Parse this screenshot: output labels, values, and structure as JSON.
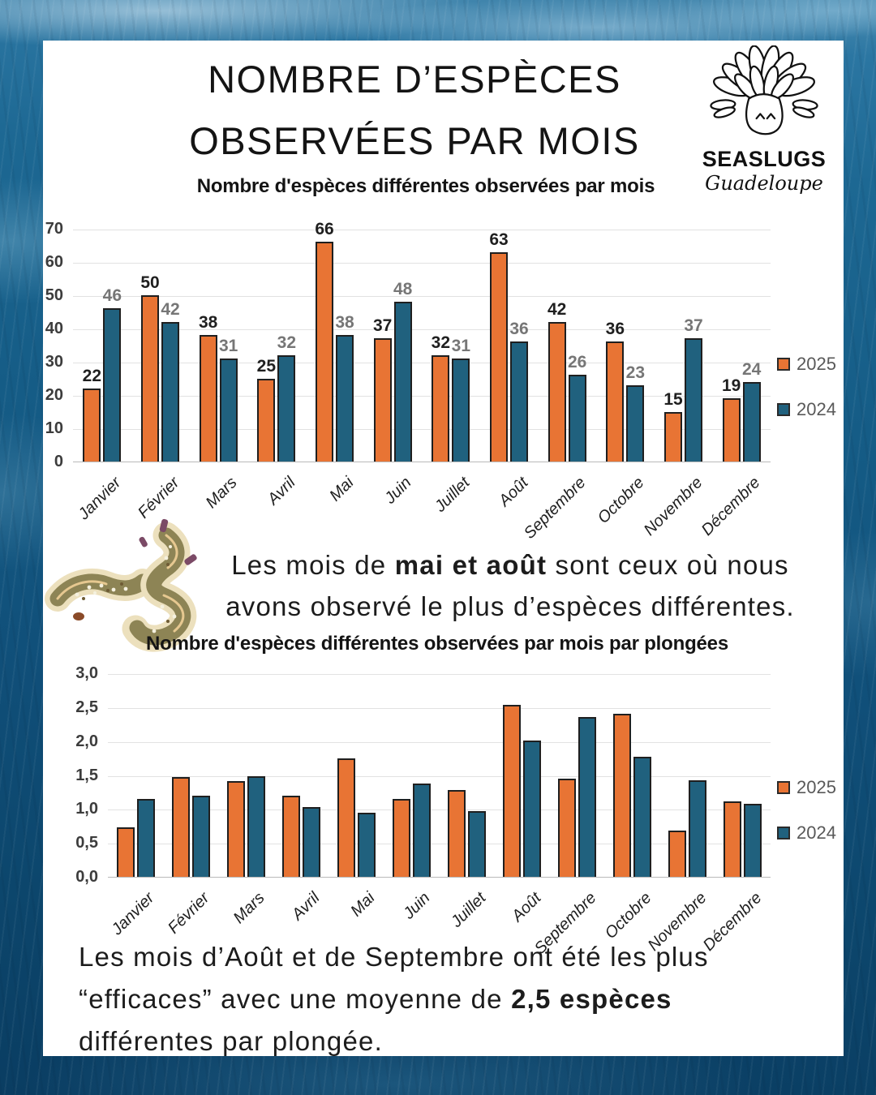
{
  "header": {
    "title_line1": "NOMBRE D’ESPÈCES",
    "title_line2": "OBSERVÉES PAR MOIS"
  },
  "logo": {
    "name": "SEASLUGS",
    "subname": "Guadeloupe"
  },
  "captions": {
    "middle_prefix": "Les mois de ",
    "middle_bold": "mai et août",
    "middle_suffix": " sont ceux où nous",
    "middle_line2": "avons observé le plus d’espèces différentes.",
    "bottom_line1": "Les mois d’Août et de Septembre ont été les plus",
    "bottom_line2_prefix": "“efficaces” avec une moyenne de ",
    "bottom_line2_bold": "2,5 espèces",
    "bottom_line3": "différentes par plongée."
  },
  "chart_data": [
    {
      "type": "bar",
      "title": "Nombre d'espèces différentes observées par mois",
      "categories": [
        "Janvier",
        "Février",
        "Mars",
        "Avril",
        "Mai",
        "Juin",
        "Juillet",
        "Août",
        "Septembre",
        "Octobre",
        "Novembre",
        "Décembre"
      ],
      "series": [
        {
          "name": "2025",
          "color": "#E87434",
          "values": [
            22,
            50,
            38,
            25,
            66,
            37,
            32,
            63,
            42,
            36,
            15,
            19
          ]
        },
        {
          "name": "2024",
          "color": "#20617E",
          "values": [
            46,
            42,
            31,
            32,
            38,
            48,
            31,
            36,
            26,
            23,
            37,
            24
          ]
        }
      ],
      "ylim": [
        0,
        70
      ],
      "ytick_step": 10,
      "yticks": [
        "0",
        "10",
        "20",
        "30",
        "40",
        "50",
        "60",
        "70"
      ],
      "data_labels": true,
      "grid": true,
      "legend_position": "right"
    },
    {
      "type": "bar",
      "title": "Nombre d'espèces différentes observées par mois par plongées",
      "categories": [
        "Janvier",
        "Février",
        "Mars",
        "Avril",
        "Mai",
        "Juin",
        "Juillet",
        "Août",
        "Septembre",
        "Octobre",
        "Novembre",
        "Décembre"
      ],
      "series": [
        {
          "name": "2025",
          "color": "#E87434",
          "values": [
            0.73,
            1.47,
            1.41,
            1.19,
            1.74,
            1.15,
            1.28,
            2.53,
            1.45,
            2.4,
            0.68,
            1.11
          ]
        },
        {
          "name": "2024",
          "color": "#20617E",
          "values": [
            1.15,
            1.2,
            1.48,
            1.03,
            0.95,
            1.37,
            0.97,
            2.01,
            2.36,
            1.77,
            1.42,
            1.08
          ]
        }
      ],
      "ylim": [
        0,
        3
      ],
      "ytick_step": 0.5,
      "yticks": [
        "0,0",
        "0,5",
        "1,0",
        "1,5",
        "2,0",
        "2,5",
        "3,0"
      ],
      "data_labels": false,
      "grid": true,
      "legend_position": "right"
    }
  ]
}
